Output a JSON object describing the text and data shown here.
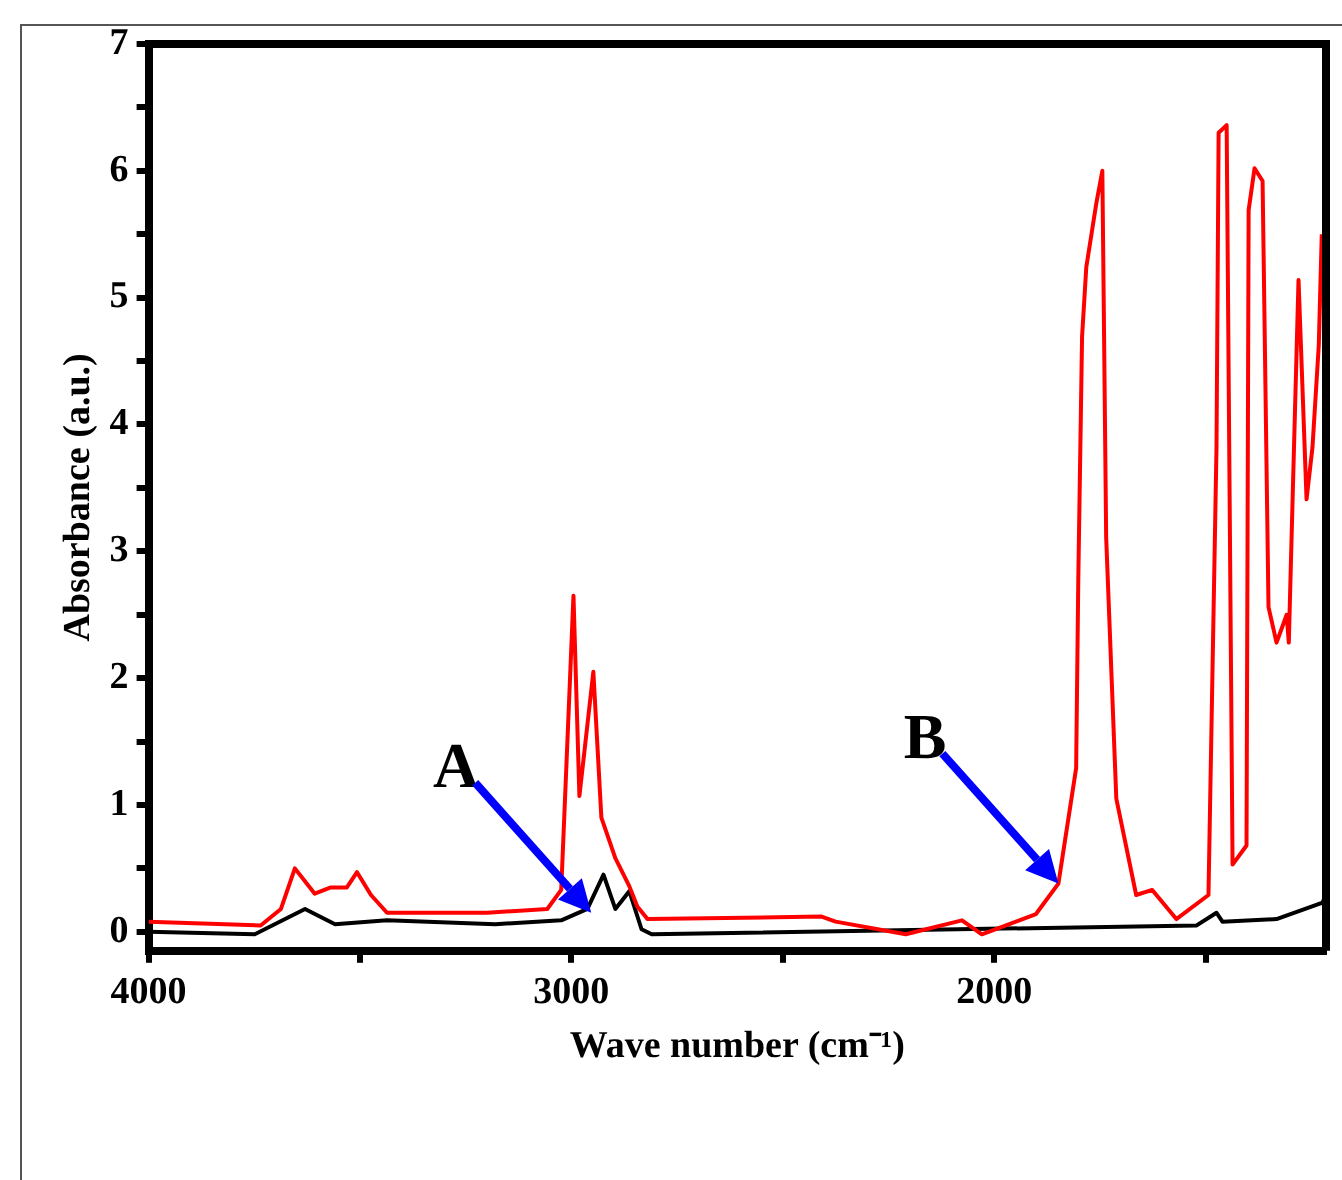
{
  "chart_data": {
    "type": "line",
    "xlabel": "Wave number (cm⁻¹)",
    "ylabel": "Absorbance (a.u.)",
    "xlim": [
      4000,
      1215
    ],
    "xticks": [
      4000,
      {
        "value": 3500,
        "label": null
      },
      3000,
      {
        "value": 2500,
        "label": null
      },
      2000,
      {
        "value": 1500,
        "label": null
      }
    ],
    "ylim": [
      -0.15,
      7
    ],
    "yticks": [
      0,
      {
        "value": 0.5,
        "label": null
      },
      1,
      {
        "value": 1.5,
        "label": null
      },
      2,
      {
        "value": 2.5,
        "label": null
      },
      3,
      {
        "value": 3.5,
        "label": null
      },
      4,
      {
        "value": 4.5,
        "label": null
      },
      5,
      {
        "value": 5.5,
        "label": null
      },
      6,
      {
        "value": 6.5,
        "label": null
      },
      7
    ],
    "grid": false,
    "legend": false,
    "marker": "none",
    "line_style": "solid",
    "series": [
      {
        "color": "#ff0000",
        "x": [
          4000,
          3735,
          3687,
          3654,
          3607,
          3569,
          3531,
          3507,
          3474,
          3436,
          3199,
          3057,
          3024,
          2995,
          2981,
          2948,
          2929,
          2896,
          2863,
          2844,
          2820,
          2408,
          2375,
          2209,
          2076,
          2029,
          1901,
          1848,
          1806,
          1801,
          1792,
          1782,
          1758,
          1744,
          1735,
          1711,
          1664,
          1626,
          1569,
          1493,
          1474,
          1469,
          1450,
          1436,
          1403,
          1398,
          1384,
          1365,
          1351,
          1332,
          1308,
          1303,
          1294,
          1280,
          1261,
          1247,
          1232,
          1225
        ],
        "values": [
          0.08,
          0.05,
          0.18,
          0.5,
          0.3,
          0.35,
          0.35,
          0.47,
          0.29,
          0.15,
          0.15,
          0.18,
          0.33,
          2.65,
          1.07,
          2.05,
          0.9,
          0.58,
          0.36,
          0.2,
          0.1,
          0.12,
          0.08,
          -0.02,
          0.09,
          -0.02,
          0.14,
          0.38,
          1.29,
          2.76,
          4.69,
          5.24,
          5.75,
          6.0,
          3.11,
          1.05,
          0.29,
          0.33,
          0.1,
          0.29,
          3.82,
          6.3,
          6.36,
          0.53,
          0.68,
          5.69,
          6.02,
          5.92,
          2.56,
          2.28,
          2.5,
          2.28,
          3.41,
          5.14,
          3.41,
          3.82,
          4.63,
          5.5
        ]
      },
      {
        "color": "#000000",
        "x": [
          4000,
          3749,
          3630,
          3559,
          3436,
          3180,
          3024,
          2962,
          2924,
          2896,
          2863,
          2834,
          2810,
          1521,
          1474,
          1460,
          1332,
          1223,
          1215
        ],
        "values": [
          0.0,
          -0.02,
          0.18,
          0.06,
          0.09,
          0.06,
          0.09,
          0.18,
          0.45,
          0.18,
          0.32,
          0.02,
          -0.02,
          0.05,
          0.15,
          0.08,
          0.1,
          0.23,
          0.3
        ]
      }
    ],
    "annotations": [
      {
        "text": "A",
        "x": 2953,
        "y": 0.15
      },
      {
        "text": "B",
        "x": 1848,
        "y": 0.38
      }
    ]
  }
}
